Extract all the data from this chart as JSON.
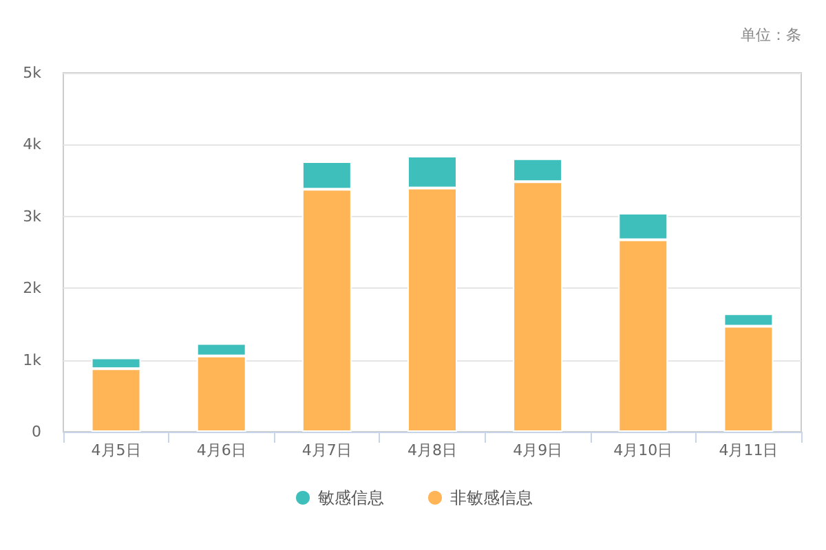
{
  "chart_data": {
    "type": "bar",
    "stacked": true,
    "categories": [
      "4月5日",
      "4月6日",
      "4月7日",
      "4月8日",
      "4月9日",
      "4月10日",
      "4月11日"
    ],
    "series": [
      {
        "name": "非敏感信息",
        "color": "#ffb455",
        "values": [
          880,
          1055,
          3380,
          3395,
          3485,
          2675,
          1470
        ]
      },
      {
        "name": "敏感信息",
        "color": "#3ebfbc",
        "values": [
          150,
          175,
          385,
          445,
          320,
          370,
          175
        ]
      }
    ],
    "ylim": [
      0,
      5000
    ],
    "yticks": [
      0,
      {
        "value": 1000,
        "label": "1k"
      },
      {
        "value": 2000,
        "label": "2k"
      },
      {
        "value": 3000,
        "label": "3k"
      },
      {
        "value": 4000,
        "label": "4k"
      },
      {
        "value": 5000,
        "label": "5k"
      }
    ],
    "grid": "y",
    "legend": "bottom",
    "annotations": [
      "单位：条"
    ]
  }
}
